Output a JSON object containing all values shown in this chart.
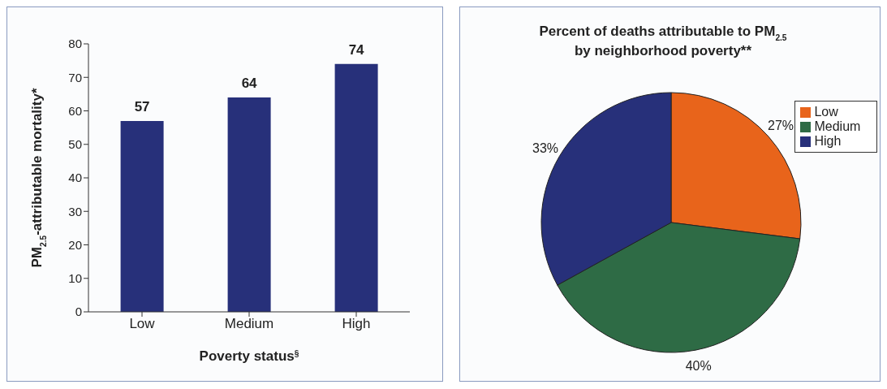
{
  "chart_data": [
    {
      "type": "bar",
      "categories": [
        "Low",
        "Medium",
        "High"
      ],
      "values": [
        57,
        64,
        74
      ],
      "color": "#27307a",
      "ylim": [
        0,
        80
      ],
      "yticks": [
        0,
        10,
        20,
        30,
        40,
        50,
        60,
        70,
        80
      ],
      "ylabel": "PM$_{2.5}$-attributable mortality*",
      "xlabel": "Poverty status$^{§}$",
      "data_labels": true
    },
    {
      "type": "pie",
      "title": "Percent of deaths attributable to PM$_{2.5}$\nby neighborhood poverty**",
      "categories": [
        "Low",
        "Medium",
        "High"
      ],
      "values": [
        27,
        40,
        33
      ],
      "colors": [
        "#e8641b",
        "#2e6b45",
        "#27307a"
      ],
      "value_labels": [
        "27%",
        "40%",
        "33%"
      ],
      "legend": "right"
    }
  ]
}
